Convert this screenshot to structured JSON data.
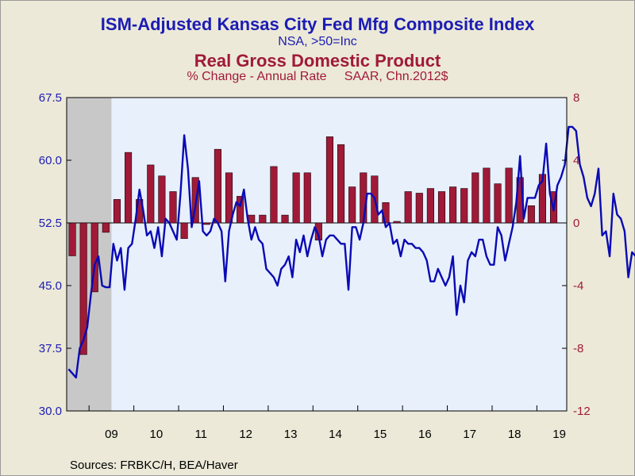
{
  "titles": {
    "line_title": "ISM-Adjusted Kansas City Fed Mfg Composite Index",
    "line_subtitle": "NSA, >50=Inc",
    "bar_title": "Real Gross Domestic Product",
    "bar_subtitle": "% Change - Annual Rate     SAAR, Chn.2012$"
  },
  "source": "Sources:  FRBKC/H, BEA/Haver",
  "colors": {
    "line": "#0a0ab4",
    "bar": "#a01a38",
    "left_axis": "#1c1cb4",
    "right_axis": "#a01a38",
    "plot_bg": "#e8f0fc",
    "recession": "#c8c8c8"
  },
  "chart_data": {
    "type": "bar+line",
    "x_start": "2008-07",
    "x_end": "2019-08",
    "x_tick_labels": [
      "09",
      "10",
      "11",
      "12",
      "13",
      "14",
      "15",
      "16",
      "17",
      "18",
      "19"
    ],
    "left_axis": {
      "ylim": [
        30.0,
        67.5
      ],
      "ticks": [
        "30.0",
        "37.5",
        "45.0",
        "52.5",
        "60.0",
        "67.5"
      ]
    },
    "right_axis": {
      "ylim": [
        -12,
        8
      ],
      "ticks": [
        "-12",
        "-8",
        "-4",
        "0",
        "4",
        "8"
      ]
    },
    "recession_shading": {
      "start": "2008-07",
      "end": "2009-06"
    },
    "bar_series": {
      "name": "Real Gross Domestic Product",
      "axis": "right",
      "quarters": [
        "2008Q3",
        "2008Q4",
        "2009Q1",
        "2009Q2",
        "2009Q3",
        "2009Q4",
        "2010Q1",
        "2010Q2",
        "2010Q3",
        "2010Q4",
        "2011Q1",
        "2011Q2",
        "2011Q3",
        "2011Q4",
        "2012Q1",
        "2012Q2",
        "2012Q3",
        "2012Q4",
        "2013Q1",
        "2013Q2",
        "2013Q3",
        "2013Q4",
        "2014Q1",
        "2014Q2",
        "2014Q3",
        "2014Q4",
        "2015Q1",
        "2015Q2",
        "2015Q3",
        "2015Q4",
        "2016Q1",
        "2016Q2",
        "2016Q3",
        "2016Q4",
        "2017Q1",
        "2017Q2",
        "2017Q3",
        "2017Q4",
        "2018Q1",
        "2018Q2",
        "2018Q3",
        "2018Q4",
        "2019Q1",
        "2019Q2"
      ],
      "values": [
        -2.1,
        -8.4,
        -4.4,
        -0.6,
        1.5,
        4.5,
        1.5,
        3.7,
        3.0,
        2.0,
        -1.0,
        2.9,
        -0.1,
        4.7,
        3.2,
        1.7,
        0.5,
        0.5,
        3.6,
        0.5,
        3.2,
        3.2,
        -1.1,
        5.5,
        5.0,
        2.3,
        3.2,
        3.0,
        1.3,
        0.1,
        2.0,
        1.9,
        2.2,
        2.0,
        2.3,
        2.2,
        3.2,
        3.5,
        2.5,
        3.5,
        2.9,
        1.1,
        3.1,
        2.0
      ]
    },
    "line_series": {
      "name": "ISM-Adjusted Kansas City Fed Mfg Composite Index",
      "axis": "left",
      "months_start": "2008-07",
      "values": [
        35,
        34.5,
        34,
        37.5,
        38.5,
        40,
        44,
        47.5,
        48.5,
        45,
        44.8,
        44.8,
        50,
        48,
        49.5,
        44.5,
        49.5,
        50,
        53,
        56.5,
        54,
        51,
        51.5,
        49.5,
        52,
        48.5,
        53,
        52.5,
        51.5,
        50.5,
        56,
        63,
        59,
        52,
        54.5,
        57.5,
        51.5,
        51,
        51.5,
        53,
        52.5,
        51.5,
        45.5,
        51.5,
        53.5,
        55,
        54.5,
        56.5,
        53,
        50.5,
        52,
        50.5,
        50,
        47,
        46.5,
        46,
        45,
        47,
        47.5,
        48.5,
        46,
        50.5,
        49,
        51,
        48.5,
        50.5,
        52,
        51,
        48.5,
        50.5,
        51,
        51,
        50.5,
        50,
        50,
        44.5,
        52,
        52,
        50.5,
        52.5,
        56,
        56,
        55.5,
        53.5,
        54,
        52,
        52.5,
        50,
        50.5,
        48.5,
        50.5,
        50,
        50,
        49.5,
        49.5,
        49,
        48,
        45.5,
        45.5,
        47,
        46,
        45,
        46,
        48.5,
        41.5,
        45,
        43,
        48,
        49,
        48.5,
        50.5,
        50.5,
        48.5,
        47.5,
        47.5,
        52,
        51,
        48,
        50,
        52,
        55,
        60.5,
        53,
        55.5,
        55.5,
        55.5,
        57,
        57.5,
        62,
        56,
        54,
        57,
        58,
        59.5,
        64,
        64,
        63.5,
        59.5,
        58,
        55.5,
        54.5,
        56,
        59,
        51,
        51.5,
        48.5,
        56,
        53.5,
        53,
        51.5,
        46,
        49,
        48.5
      ]
    }
  }
}
